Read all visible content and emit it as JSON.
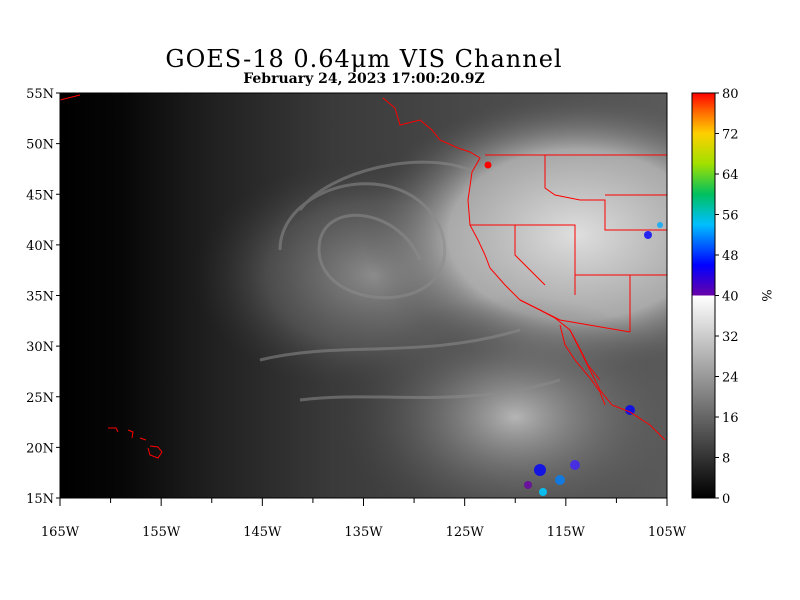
{
  "title": "GOES-18  0.64μm VIS Channel",
  "subtitle": "February 24,  2023 17:00:20.9Z",
  "map": {
    "lon_range": [
      -165,
      -105
    ],
    "lat_range": [
      15,
      55
    ],
    "lat_ticks": [
      "15N",
      "20N",
      "25N",
      "30N",
      "35N",
      "40N",
      "45N",
      "50N",
      "55N"
    ],
    "lat_values": [
      15,
      20,
      25,
      30,
      35,
      40,
      45,
      50,
      55
    ],
    "lon_ticks": [
      "165W",
      "155W",
      "145W",
      "135W",
      "125W",
      "115W",
      "105W"
    ],
    "lon_values": [
      -165,
      -155,
      -145,
      -135,
      -125,
      -115,
      -105
    ],
    "boundary_color": "#ff0000"
  },
  "colorbar": {
    "ticks": [
      "0",
      "8",
      "16",
      "24",
      "32",
      "40",
      "48",
      "56",
      "64",
      "72",
      "80"
    ],
    "tick_values": [
      0,
      8,
      16,
      24,
      32,
      40,
      48,
      56,
      64,
      72,
      80
    ],
    "range": [
      0,
      80
    ],
    "unit": "%",
    "grayscale_range": [
      0,
      40
    ],
    "color_range": [
      40,
      80
    ]
  }
}
